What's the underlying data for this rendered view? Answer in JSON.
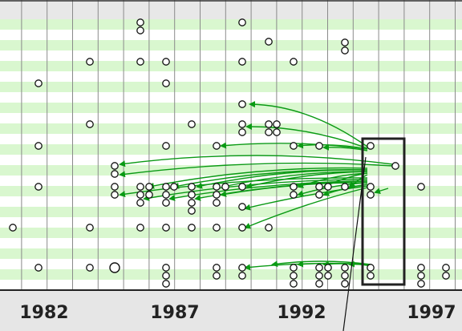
{
  "timeline": {
    "year_labels": [
      {
        "year": 1982,
        "text": "1982"
      },
      {
        "year": 1987,
        "text": "1987"
      },
      {
        "year": 1992,
        "text": "1992"
      },
      {
        "year": 1997,
        "text": "1997"
      }
    ],
    "colors": {
      "band": "#d9f7cf",
      "grid": "#8a8a8a",
      "arrow": "#0a9a14",
      "node_stroke": "#111111",
      "axis_bg": "#e6e6e6",
      "top_band": "#e8e8e8"
    },
    "selection": {
      "year_from": 1995,
      "year_to": 1996.6,
      "label": ""
    }
  }
}
